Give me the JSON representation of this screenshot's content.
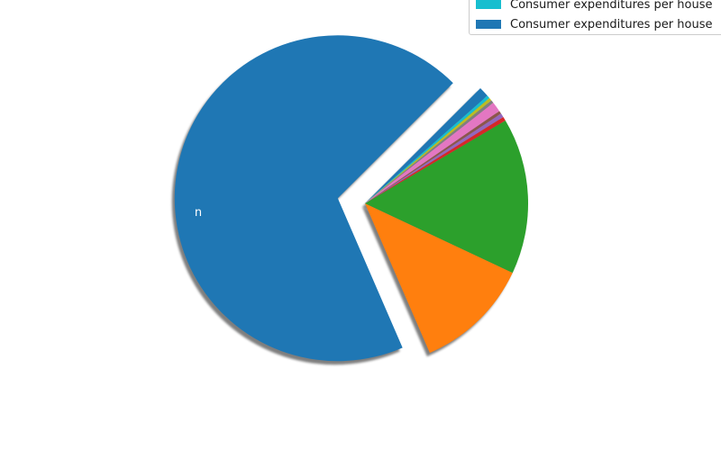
{
  "chart_data": {
    "type": "pie",
    "title": "",
    "slices": [
      {
        "value": 69.0,
        "color": "#1f77b4",
        "exploded": true,
        "label": "n"
      },
      {
        "value": 11.5,
        "color": "#ff7f0e",
        "exploded": false
      },
      {
        "value": 15.5,
        "color": "#2ca02c",
        "exploded": false
      },
      {
        "value": 0.4,
        "color": "#d62728",
        "exploded": false
      },
      {
        "value": 0.4,
        "color": "#9467bd",
        "exploded": false
      },
      {
        "value": 0.3,
        "color": "#8c564b",
        "exploded": false
      },
      {
        "value": 1.0,
        "color": "#e377c2",
        "exploded": false
      },
      {
        "value": 0.3,
        "color": "#7f7f7f",
        "exploded": false
      },
      {
        "value": 0.3,
        "color": "#bcbd22",
        "exploded": false
      },
      {
        "value": 0.3,
        "color": "#17becf",
        "exploded": false
      },
      {
        "value": 1.0,
        "color": "#1f77b4",
        "exploded": false
      }
    ],
    "shadow": true,
    "legend": {
      "placement": "top-right",
      "entries": [
        {
          "label": "Consumer expenditures per house",
          "color": "#17becf"
        },
        {
          "label": "Consumer expenditures per house",
          "color": "#1f77b4"
        }
      ]
    }
  }
}
